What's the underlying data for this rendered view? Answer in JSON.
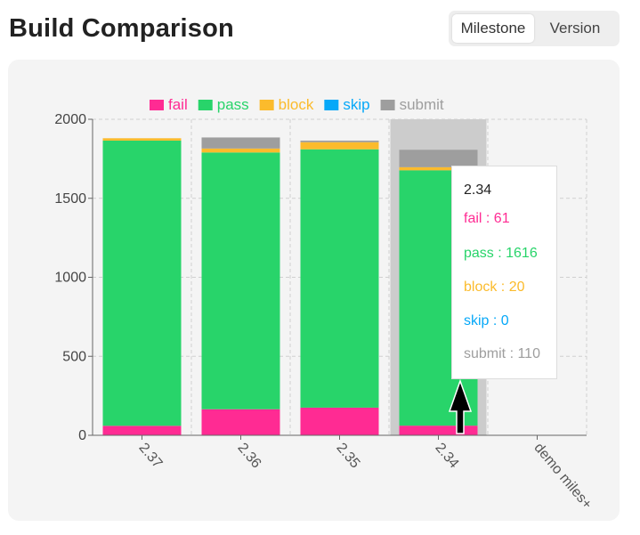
{
  "header": {
    "title": "Build Comparison"
  },
  "toggle": {
    "options": [
      "Milestone",
      "Version"
    ],
    "selected": "Milestone"
  },
  "colors": {
    "fail": "#ff2b93",
    "pass": "#28d46a",
    "block": "#fbbb2c",
    "skip": "#06a8f8",
    "submit": "#9e9e9e",
    "highlight": "#cccccc"
  },
  "chart_data": {
    "type": "bar",
    "stacked": true,
    "categories": [
      "2.37",
      "2.36",
      "2.35",
      "2.34",
      "demo miles+"
    ],
    "ylim": [
      0,
      2000
    ],
    "yticks": [
      0,
      500,
      1000,
      1500,
      2000
    ],
    "grid": true,
    "legend_position": "top",
    "series": [
      {
        "name": "fail",
        "values": [
          60,
          165,
          175,
          61,
          0
        ]
      },
      {
        "name": "pass",
        "values": [
          1805,
          1625,
          1635,
          1616,
          0
        ]
      },
      {
        "name": "block",
        "values": [
          15,
          25,
          45,
          20,
          0
        ]
      },
      {
        "name": "skip",
        "values": [
          0,
          0,
          0,
          0,
          0
        ]
      },
      {
        "name": "submit",
        "values": [
          0,
          70,
          10,
          110,
          0
        ]
      }
    ],
    "highlighted_category": "2.34"
  },
  "tooltip": {
    "category": "2.34",
    "lines": [
      {
        "key": "fail",
        "text": "fail : 61"
      },
      {
        "key": "pass",
        "text": "pass : 1616"
      },
      {
        "key": "block",
        "text": "block : 20"
      },
      {
        "key": "skip",
        "text": "skip : 0"
      },
      {
        "key": "submit",
        "text": "submit : 110"
      }
    ]
  }
}
